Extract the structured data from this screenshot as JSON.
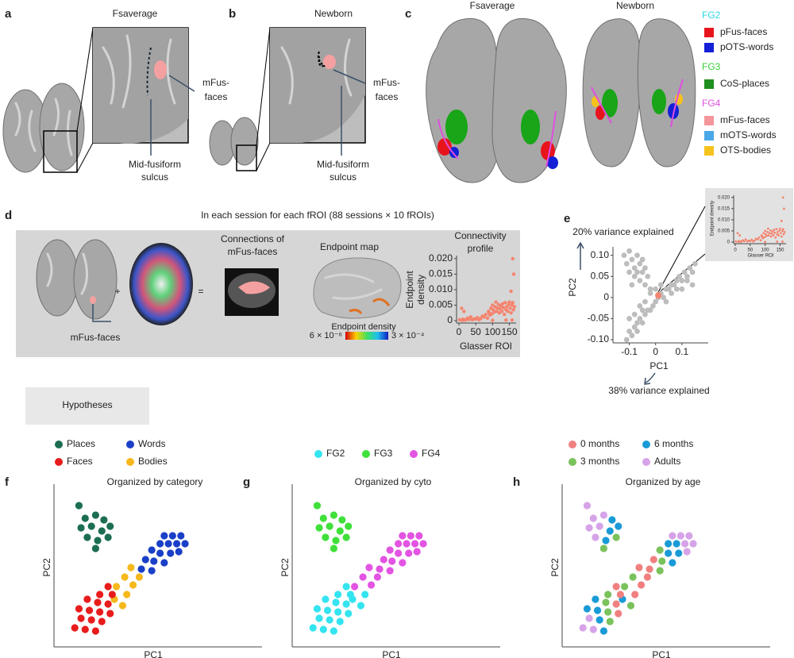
{
  "panel_a": {
    "letter": "a",
    "title": "Fsaverage",
    "roi_label": [
      "mFus-",
      "faces"
    ],
    "sulcus_label": [
      "Mid-fusiform",
      "sulcus"
    ]
  },
  "panel_b": {
    "letter": "b",
    "title": "Newborn",
    "roi_label": [
      "mFus-",
      "faces"
    ],
    "sulcus_label": [
      "Mid-fusiform",
      "sulcus"
    ]
  },
  "panel_c": {
    "letter": "c",
    "titles": [
      "Fsaverage",
      "Newborn"
    ],
    "legend": [
      {
        "group": "FG2",
        "color": "#2fd6e6",
        "items": [
          {
            "name": "pFus-faces",
            "color": "#e8141c"
          },
          {
            "name": "pOTS-words",
            "color": "#1420d6"
          }
        ]
      },
      {
        "group": "FG3",
        "color": "#34d234",
        "items": [
          {
            "name": "CoS-places",
            "color": "#1f8f1f"
          }
        ]
      },
      {
        "group": "FG4",
        "color": "#e04fe0",
        "items": [
          {
            "name": "mFus-faces",
            "color": "#f4969a"
          },
          {
            "name": "mOTS-words",
            "color": "#4aa8e8"
          },
          {
            "name": "OTS-bodies",
            "color": "#f6c21c"
          }
        ]
      }
    ]
  },
  "panel_d": {
    "letter": "d",
    "header": "In each session for each fROI (88 sessions × 10 fROIs)",
    "plus": "+",
    "equals": "=",
    "roi_label": "mFus-faces",
    "connections_label": [
      "Connections of",
      "mFus-faces"
    ],
    "map_title": "Endpoint map",
    "colorbar": {
      "title": "Endpoint density",
      "min_label": "6 × 10⁻⁶",
      "max_label": "3 × 10⁻⁴"
    }
  },
  "chart_data": [
    {
      "type": "scatter",
      "title": [
        "Connectivity",
        "profile"
      ],
      "y_label": [
        "Endpoint",
        "density"
      ],
      "x_label": "Glasser ROI",
      "color": "#f4846f",
      "x": [
        2,
        8,
        12,
        15,
        20,
        25,
        30,
        35,
        40,
        45,
        50,
        55,
        60,
        65,
        70,
        75,
        80,
        85,
        88,
        90,
        92,
        95,
        98,
        100,
        102,
        105,
        108,
        110,
        112,
        115,
        118,
        120,
        122,
        125,
        128,
        130,
        132,
        135,
        138,
        140,
        142,
        145,
        148,
        150,
        152,
        155,
        158,
        160,
        162,
        163,
        165,
        10,
        18,
        100,
        140,
        155,
        160,
        158
      ],
      "y": [
        0.0003,
        0.004,
        0.0005,
        0.003,
        0.0002,
        0.0008,
        0.0004,
        0.0012,
        0.0003,
        0.0006,
        0.0005,
        0.001,
        0.0003,
        0.0007,
        0.0015,
        0.0012,
        0.002,
        0.0008,
        0.003,
        0.0025,
        0.0018,
        0.004,
        0.0022,
        0.005,
        0.0035,
        0.0028,
        0.0045,
        0.006,
        0.003,
        0.004,
        0.0052,
        0.0025,
        0.0038,
        0.0048,
        0.003,
        0.0055,
        0.0042,
        0.002,
        0.0058,
        0.0035,
        0.0045,
        0.003,
        0.0052,
        0.006,
        0.004,
        0.0025,
        0.005,
        0.02,
        0.0035,
        0.015,
        0.0045,
        0.0001,
        0.0002,
        0.0001,
        0.0002,
        0.0095,
        0.0058,
        0.0002
      ],
      "xlim": [
        0,
        170
      ],
      "xticks": [
        0,
        50,
        100,
        150
      ],
      "ylim": [
        0,
        0.021
      ],
      "yticks": [
        0,
        0.005,
        {
          "value": 0.01,
          "label": "0.010"
        },
        0.015,
        {
          "value": 0.02,
          "label": "0.020"
        }
      ]
    },
    {
      "type": "scatter",
      "letter": "e",
      "x_label": "PC1",
      "y_label": "PC2",
      "x_annotation": "38% variance explained",
      "y_annotation": "20% variance explained",
      "inset": {
        "y_label": "Endpoint density",
        "x_label": "Glasser ROI"
      },
      "series": [
        {
          "color": "#bdbdbd",
          "x": [
            -0.12,
            -0.11,
            -0.1,
            -0.09,
            -0.08,
            -0.07,
            -0.06,
            -0.05,
            -0.04,
            -0.03,
            -0.1,
            -0.08,
            -0.06,
            -0.04,
            -0.02,
            -0.09,
            -0.07,
            -0.05,
            -0.11,
            -0.1,
            -0.09,
            -0.08,
            -0.07,
            -0.06,
            -0.05,
            -0.04,
            -0.03,
            -0.02,
            -0.01,
            0,
            0.01,
            0.02,
            0.03,
            0.04,
            0.05,
            0.06,
            0.07,
            0.08,
            0.09,
            0.1,
            0.11,
            0.12,
            0.13,
            0.14,
            0.15,
            -0.08,
            -0.06,
            -0.04,
            -0.02,
            0,
            0.02,
            0.04,
            0.06,
            0.08,
            0.1,
            0.12,
            0.14,
            -0.1,
            -0.07,
            -0.05
          ],
          "y": [
            0.1,
            0.08,
            0.11,
            0.09,
            0.07,
            0.1,
            0.08,
            0.06,
            0.07,
            0.05,
            0.06,
            0.05,
            0.04,
            0.03,
            0.02,
            0.03,
            0.06,
            0.09,
            -0.1,
            -0.08,
            -0.09,
            -0.07,
            -0.06,
            -0.05,
            -0.06,
            -0.04,
            -0.03,
            -0.03,
            -0.02,
            -0.01,
            0,
            0.01,
            0,
            0.02,
            0.02,
            0.03,
            0.03,
            0.04,
            0.05,
            0.04,
            0.06,
            0.05,
            0.07,
            0.06,
            0.08,
            -0.04,
            -0.02,
            -0.01,
            0.01,
            0.02,
            0.03,
            -0.01,
            0.01,
            0.02,
            0.02,
            0.04,
            0.03,
            -0.05,
            -0.08,
            -0.03
          ]
        },
        {
          "color": "#f4846f",
          "x": [
            0.01
          ],
          "y": [
            0.005
          ]
        }
      ],
      "xlim": [
        -0.15,
        0.2
      ],
      "xticks": [
        -0.1,
        0,
        0.1
      ],
      "ylim": [
        -0.1,
        0.12
      ],
      "yticks": [
        {
          "value": -0.1,
          "label": "-0.10"
        },
        -0.05,
        0,
        0.05,
        {
          "value": 0.1,
          "label": "0.10"
        }
      ]
    }
  ],
  "hypotheses": {
    "label": "Hypotheses",
    "x_label": "PC1",
    "y_label": "PC2",
    "xlim": [
      0,
      10
    ],
    "ylim": [
      0,
      10
    ],
    "x": [
      1.2,
      1.5,
      2.0,
      2.4,
      1.3,
      1.8,
      2.3,
      2.7,
      1.6,
      2.1,
      2.6,
      2.0,
      5.3,
      5.7,
      6.1,
      5.1,
      5.5,
      5.9,
      6.3,
      4.7,
      5.1,
      5.6,
      6.0,
      4.4,
      4.8,
      5.3,
      4.2,
      4.7,
      3.7,
      4.1,
      3.4,
      3.8,
      3.0,
      3.5,
      2.9,
      3.3,
      2.6,
      2.2,
      2.8,
      1.6,
      2.1,
      2.6,
      1.2,
      1.7,
      2.2,
      2.7,
      1.3,
      1.8,
      2.3,
      1.0,
      1.5,
      2.0
    ],
    "y": [
      8.9,
      8.1,
      8.3,
      8.0,
      7.5,
      7.6,
      7.3,
      7.6,
      6.9,
      6.7,
      6.9,
      6.2,
      7.0,
      7.0,
      7.0,
      6.5,
      6.5,
      6.5,
      6.5,
      6.1,
      5.9,
      5.9,
      6.0,
      5.5,
      5.4,
      5.3,
      4.9,
      4.8,
      5.0,
      4.4,
      4.4,
      3.9,
      3.8,
      3.3,
      3.0,
      2.6,
      3.8,
      3.3,
      3.3,
      3.0,
      2.8,
      2.7,
      2.4,
      2.3,
      2.2,
      2.1,
      1.8,
      1.7,
      1.6,
      1.2,
      1.1,
      1.0
    ],
    "category": [
      "Places",
      "Places",
      "Places",
      "Places",
      "Places",
      "Places",
      "Places",
      "Places",
      "Places",
      "Places",
      "Places",
      "Places",
      "Words",
      "Words",
      "Words",
      "Words",
      "Words",
      "Words",
      "Words",
      "Words",
      "Words",
      "Words",
      "Words",
      "Words",
      "Words",
      "Words",
      "Words",
      "Words",
      "Bodies",
      "Bodies",
      "Bodies",
      "Bodies",
      "Bodies",
      "Bodies",
      "Bodies",
      "Bodies",
      "Faces",
      "Faces",
      "Faces",
      "Faces",
      "Faces",
      "Faces",
      "Faces",
      "Faces",
      "Faces",
      "Faces",
      "Faces",
      "Faces",
      "Faces",
      "Faces",
      "Faces",
      "Faces"
    ],
    "cyto": [
      "FG3",
      "FG3",
      "FG3",
      "FG3",
      "FG3",
      "FG3",
      "FG3",
      "FG3",
      "FG3",
      "FG3",
      "FG3",
      "FG3",
      "FG4",
      "FG4",
      "FG4",
      "FG4",
      "FG4",
      "FG4",
      "FG4",
      "FG4",
      "FG4",
      "FG4",
      "FG4",
      "FG4",
      "FG4",
      "FG4",
      "FG4",
      "FG4",
      "FG4",
      "FG4",
      "FG4",
      "FG4",
      "FG4",
      "FG2",
      "FG2",
      "FG2",
      "FG2",
      "FG2",
      "FG2",
      "FG2",
      "FG2",
      "FG2",
      "FG2",
      "FG2",
      "FG2",
      "FG2",
      "FG2",
      "FG2",
      "FG2",
      "FG2",
      "FG2",
      "FG2"
    ],
    "age": [
      "Adults",
      "Adults",
      "Adults",
      "6 months",
      "Adults",
      "Adults",
      "6 months",
      "6 months",
      "Adults",
      "6 months",
      "3 months",
      "3 months",
      "Adults",
      "Adults",
      "Adults",
      "6 months",
      "6 months",
      "Adults",
      "Adults",
      "3 months",
      "6 months",
      "6 months",
      "Adults",
      "0 months",
      "3 months",
      "6 months",
      "0 months",
      "3 months",
      "0 months",
      "0 months",
      "3 months",
      "0 months",
      "3 months",
      "0 months",
      "6 months",
      "3 months",
      "0 months",
      "3 months",
      "0 months",
      "6 months",
      "3 months",
      "0 months",
      "6 months",
      "6 months",
      "3 months",
      "0 months",
      "Adults",
      "6 months",
      "3 months",
      "Adults",
      "Adults",
      "6 months"
    ],
    "panels": [
      {
        "letter": "f",
        "title": "Organized by category",
        "color_by": "category",
        "legend": [
          {
            "name": "Places",
            "color": "#1b6e52"
          },
          {
            "name": "Words",
            "color": "#1a3fc8"
          },
          {
            "name": "Faces",
            "color": "#e81c1c"
          },
          {
            "name": "Bodies",
            "color": "#f6b81c"
          }
        ]
      },
      {
        "letter": "g",
        "title": "Organized by cyto",
        "color_by": "cyto",
        "legend": [
          {
            "name": "FG2",
            "color": "#34e4f0"
          },
          {
            "name": "FG3",
            "color": "#3fe03a"
          },
          {
            "name": "FG4",
            "color": "#e354e3"
          }
        ]
      },
      {
        "letter": "h",
        "title": "Organized by age",
        "color_by": "age",
        "legend": [
          {
            "name": "0 months",
            "color": "#f08080"
          },
          {
            "name": "6 months",
            "color": "#1a9bd7"
          },
          {
            "name": "3 months",
            "color": "#7ac25c"
          },
          {
            "name": "Adults",
            "color": "#d6a3e8"
          }
        ]
      }
    ]
  }
}
